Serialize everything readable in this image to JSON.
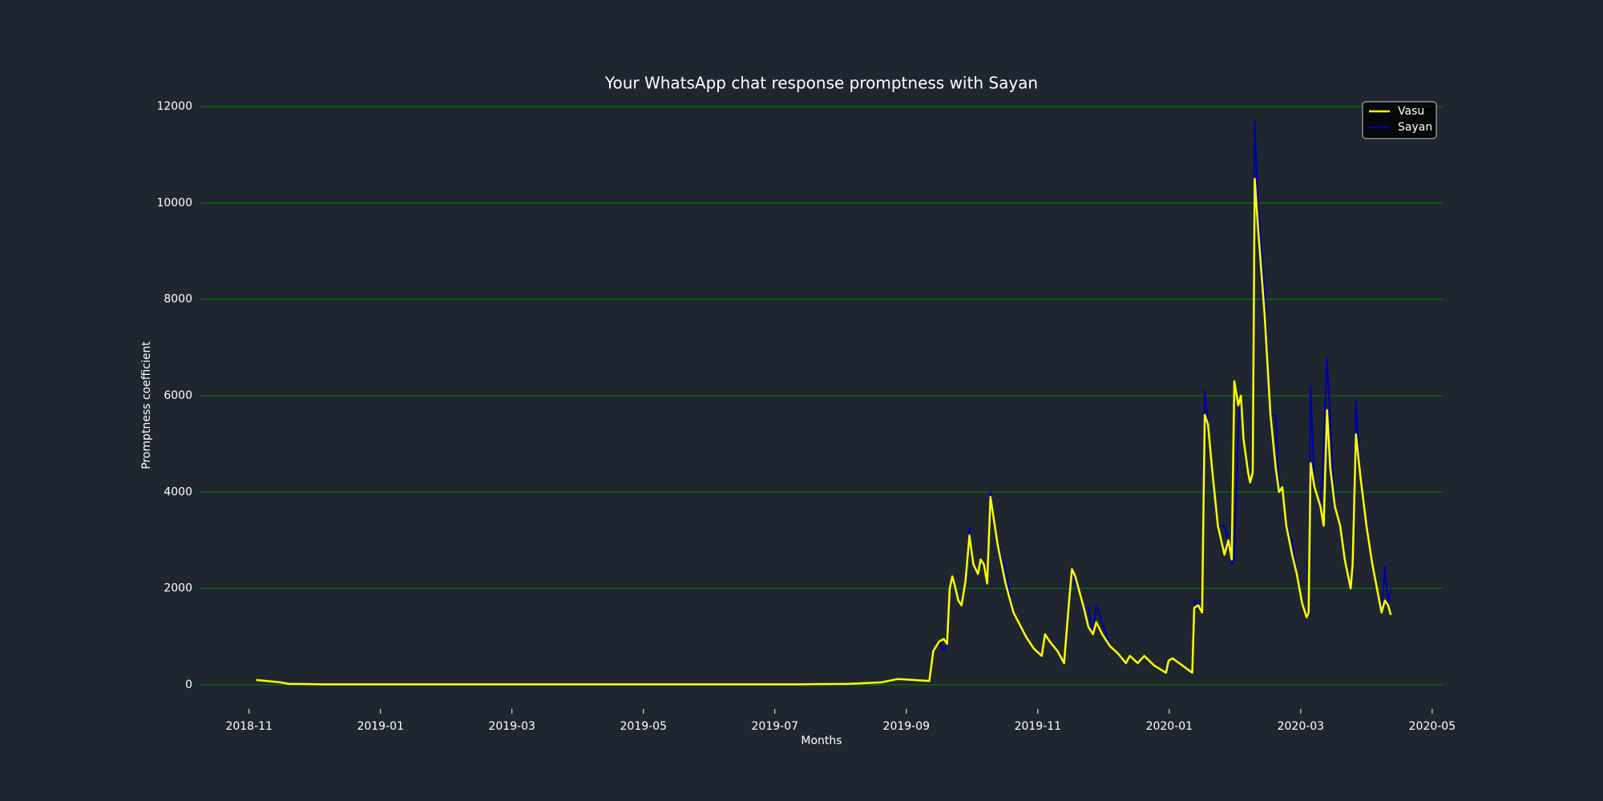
{
  "chart_data": {
    "type": "line",
    "title": "Your WhatsApp chat response promptness with Sayan",
    "x_label": "Months",
    "y_label": "Promptness coefficient",
    "x": [
      0.11,
      0.48,
      0.6,
      1.09,
      3.52,
      5.96,
      8.4,
      9.13,
      9.62,
      9.87,
      10.35,
      10.41,
      10.5,
      10.57,
      10.62,
      10.66,
      10.7,
      10.74,
      10.79,
      10.84,
      10.9,
      10.96,
      11.02,
      11.09,
      11.13,
      11.18,
      11.23,
      11.28,
      11.39,
      11.51,
      11.63,
      11.82,
      11.94,
      12.06,
      12.11,
      12.18,
      12.3,
      12.4,
      12.48,
      12.52,
      12.57,
      12.62,
      12.7,
      12.77,
      12.84,
      12.89,
      12.98,
      13.1,
      13.22,
      13.34,
      13.4,
      13.52,
      13.62,
      13.77,
      13.95,
      13.99,
      14.05,
      14.2,
      14.35,
      14.38,
      14.44,
      14.5,
      14.54,
      14.59,
      14.65,
      14.74,
      14.84,
      14.9,
      14.95,
      14.99,
      15.05,
      15.09,
      15.13,
      15.2,
      15.23,
      15.27,
      15.3,
      15.35,
      15.45,
      15.54,
      15.62,
      15.67,
      15.72,
      15.78,
      15.87,
      15.94,
      16.02,
      16.09,
      16.12,
      16.15,
      16.21,
      16.3,
      16.35,
      16.4,
      16.45,
      16.52,
      16.6,
      16.67,
      16.76,
      16.79,
      16.84,
      16.91,
      17.0,
      17.09,
      17.16,
      17.23,
      17.28,
      17.33,
      17.37
    ],
    "series": [
      {
        "name": "Sayan",
        "color": "#0000aa",
        "values": [
          100,
          50,
          20,
          10,
          10,
          10,
          10,
          20,
          50,
          120,
          80,
          700,
          900,
          700,
          850,
          2000,
          2250,
          2050,
          1750,
          1650,
          2150,
          3250,
          2500,
          2300,
          2600,
          2500,
          2100,
          4000,
          2900,
          2400,
          1500,
          1000,
          750,
          600,
          1050,
          900,
          700,
          450,
          1800,
          2400,
          2100,
          2000,
          1600,
          1600,
          1050,
          1650,
          1300,
          800,
          650,
          450,
          600,
          450,
          600,
          400,
          250,
          500,
          550,
          400,
          250,
          1750,
          1650,
          1800,
          6100,
          5400,
          4500,
          3300,
          3300,
          3000,
          2500,
          2600,
          5400,
          6000,
          5100,
          4400,
          4200,
          4400,
          11700,
          10000,
          8200,
          5600,
          5600,
          4000,
          4100,
          3300,
          3000,
          2300,
          1700,
          1400,
          1600,
          6200,
          4100,
          3700,
          5000,
          6800,
          5500,
          3700,
          3300,
          2600,
          2000,
          2500,
          5900,
          4300,
          3300,
          2500,
          2000,
          1500,
          2450,
          1650,
          2000
        ]
      },
      {
        "name": "Vasu",
        "color": "#ffff00",
        "values": [
          100,
          50,
          20,
          10,
          10,
          10,
          10,
          20,
          50,
          120,
          80,
          700,
          900,
          950,
          850,
          2000,
          2250,
          2050,
          1750,
          1650,
          2150,
          3100,
          2500,
          2300,
          2600,
          2500,
          2100,
          3900,
          2900,
          2100,
          1500,
          1000,
          750,
          600,
          1050,
          900,
          700,
          450,
          1800,
          2400,
          2250,
          2000,
          1600,
          1200,
          1050,
          1300,
          1050,
          800,
          650,
          450,
          600,
          450,
          600,
          400,
          250,
          500,
          550,
          400,
          250,
          1600,
          1650,
          1500,
          5600,
          5400,
          4500,
          3300,
          2700,
          3000,
          2600,
          6300,
          5800,
          6000,
          5100,
          4400,
          4200,
          4400,
          10500,
          9500,
          7700,
          5600,
          4500,
          4000,
          4100,
          3300,
          2700,
          2300,
          1700,
          1400,
          1500,
          4600,
          4100,
          3700,
          3300,
          5700,
          4500,
          3700,
          3300,
          2600,
          2000,
          2500,
          5200,
          4300,
          3300,
          2500,
          2000,
          1500,
          1750,
          1650,
          1450
        ]
      }
    ],
    "xlim": [
      -0.74,
      18.16
    ],
    "xticks": [
      {
        "value": 0,
        "label": "2018-11"
      },
      {
        "value": 2,
        "label": "2019-01"
      },
      {
        "value": 4,
        "label": "2019-03"
      },
      {
        "value": 6,
        "label": "2019-05"
      },
      {
        "value": 8,
        "label": "2019-07"
      },
      {
        "value": 10,
        "label": "2019-09"
      },
      {
        "value": 12,
        "label": "2019-11"
      },
      {
        "value": 14,
        "label": "2020-01"
      },
      {
        "value": 16,
        "label": "2020-03"
      },
      {
        "value": 18,
        "label": "2020-05"
      }
    ],
    "ylim": [
      -500,
      12200
    ],
    "yticks": [
      0,
      2000,
      4000,
      6000,
      8000,
      10000,
      12000
    ],
    "grid": true,
    "grid_color": "#008800",
    "legend": "upper right"
  }
}
